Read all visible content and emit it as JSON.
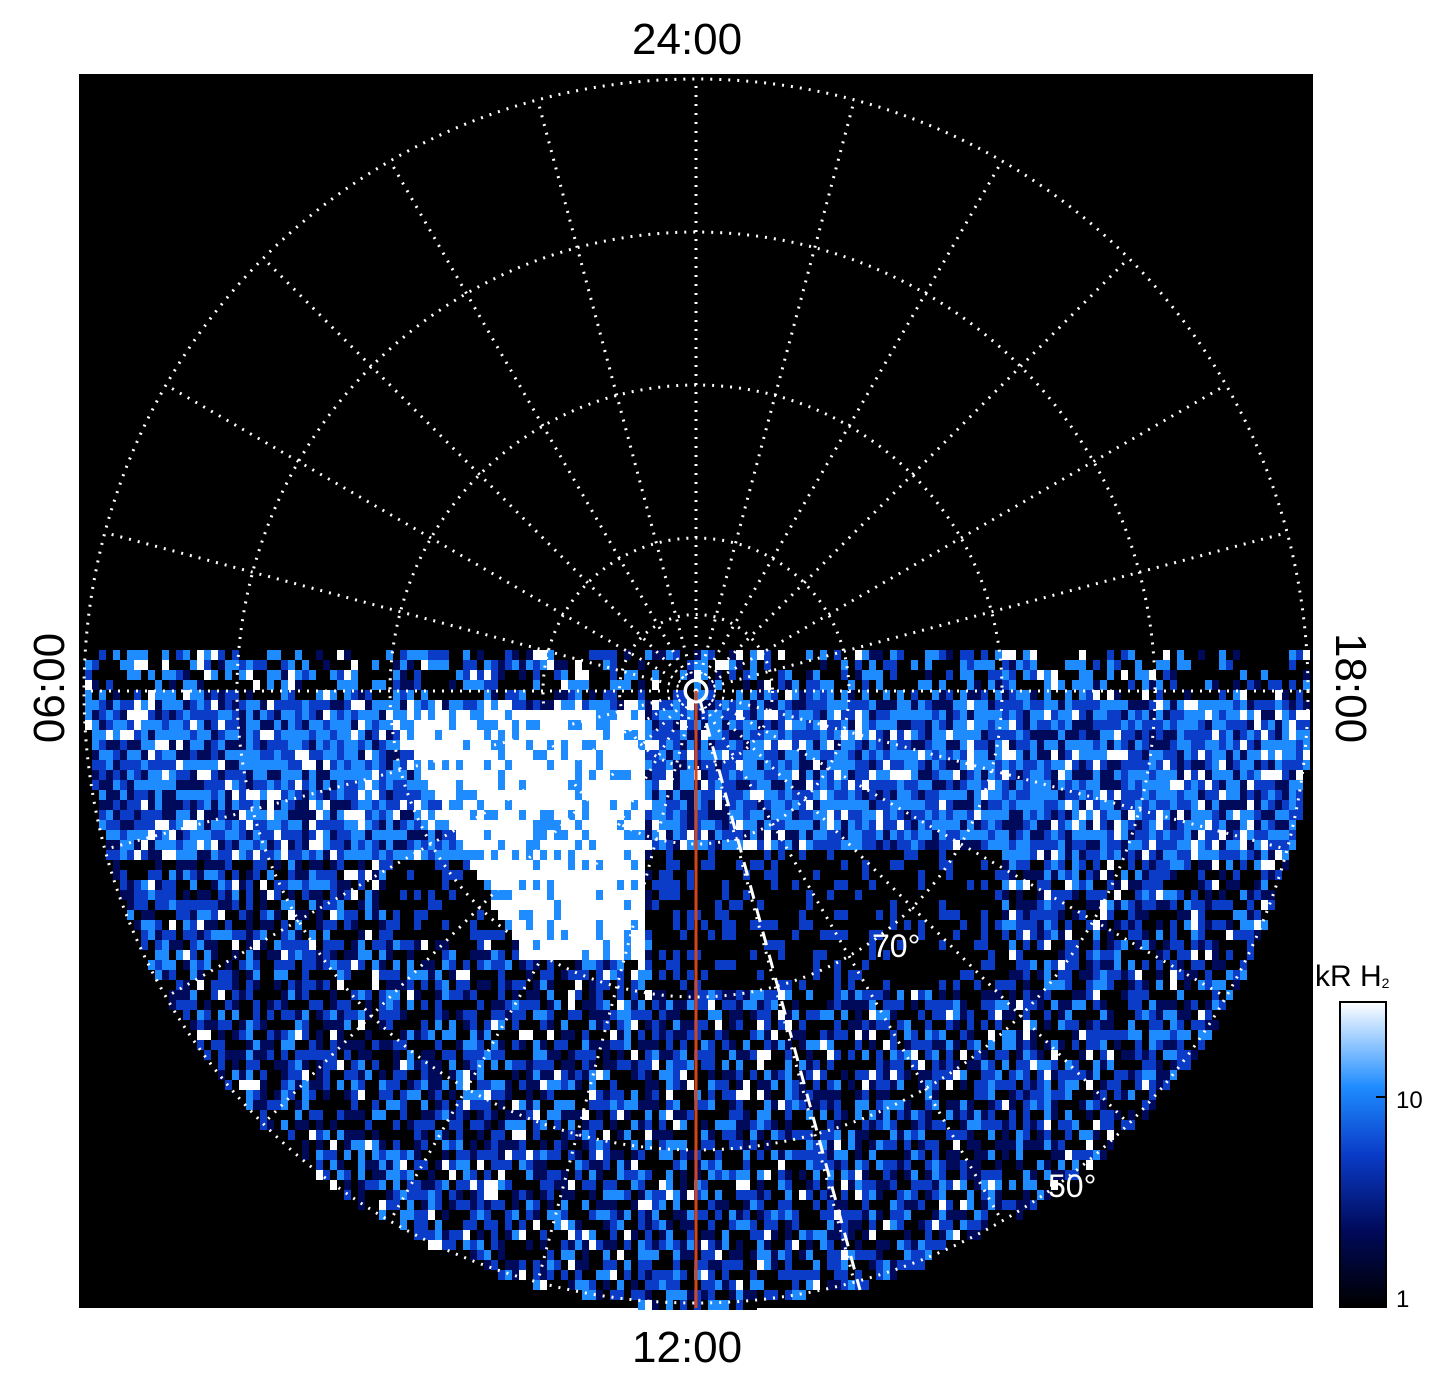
{
  "chart_data": {
    "type": "heatmap",
    "projection": "polar",
    "local_time_labels": {
      "top": "24:00",
      "bottom": "12:00",
      "left": "06:00",
      "right": "18:00"
    },
    "latitude_labels": [
      "70°",
      "50°"
    ],
    "colorbar": {
      "title": "kR H",
      "title_subscript": "2",
      "scale": "log",
      "range": [
        1,
        30
      ],
      "ticks": [
        "10",
        "1"
      ],
      "colors": [
        "#000000",
        "#000a5a",
        "#0a3cc8",
        "#1e8cff",
        "#ffffff"
      ]
    },
    "grid": true,
    "hemisphere_shown": "dayside (06:00-12:00-18:00)",
    "colors": {
      "background": "#000000",
      "grid": "#ffffff",
      "meridian": "#d2461e"
    }
  }
}
